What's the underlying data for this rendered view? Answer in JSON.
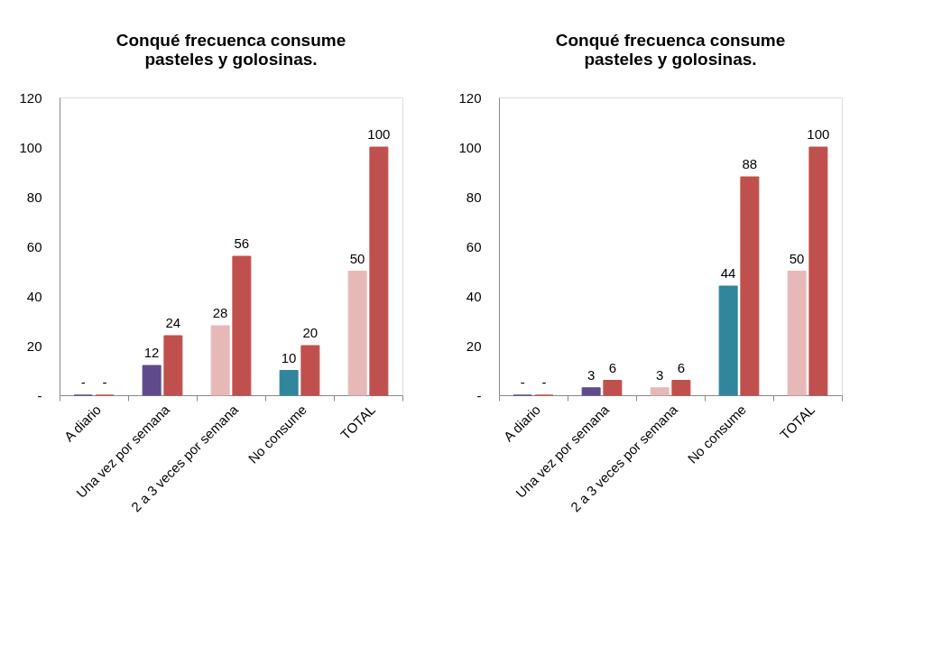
{
  "chart_data": [
    {
      "type": "bar",
      "title": "Conqué  frecuenca consume\npasteles y golosinas.",
      "categories": [
        "A diario",
        "Una vez por semana",
        "2 a 3 veces por semana",
        "No consume",
        "TOTAL"
      ],
      "series": [
        {
          "colors": [
            "#5f4b8b",
            "#5f4b8b",
            "#e6b9b8",
            "#31859c",
            "#e6b9b8"
          ],
          "values": [
            0,
            12,
            28,
            10,
            50
          ],
          "value_labels": [
            "-",
            "12",
            "28",
            "10",
            "50"
          ]
        },
        {
          "color": "#c0504d",
          "values": [
            0,
            24,
            56,
            20,
            100
          ],
          "value_labels": [
            "-",
            "24",
            "56",
            "20",
            "100"
          ]
        }
      ],
      "ylim": [
        0,
        120
      ],
      "yticks": [
        {
          "value": 0,
          "label": "-"
        },
        20,
        40,
        60,
        80,
        100,
        120
      ],
      "grid": false
    },
    {
      "type": "bar",
      "title": "Conqué  frecuenca consume\npasteles y golosinas.",
      "categories": [
        "A diario",
        "Una vez por semana",
        "2 a 3 veces por semana",
        "No consume",
        "TOTAL"
      ],
      "series": [
        {
          "colors": [
            "#5f4b8b",
            "#5f4b8b",
            "#e6b9b8",
            "#31859c",
            "#e6b9b8"
          ],
          "values": [
            0,
            3,
            3,
            44,
            50
          ],
          "value_labels": [
            "-",
            "3",
            "3",
            "44",
            "50"
          ]
        },
        {
          "color": "#c0504d",
          "values": [
            0,
            6,
            6,
            88,
            100
          ],
          "value_labels": [
            "-",
            "6",
            "6",
            "88",
            "100"
          ]
        }
      ],
      "ylim": [
        0,
        120
      ],
      "yticks": [
        {
          "value": 0,
          "label": "-"
        },
        20,
        40,
        60,
        80,
        100,
        120
      ],
      "grid": false
    }
  ]
}
